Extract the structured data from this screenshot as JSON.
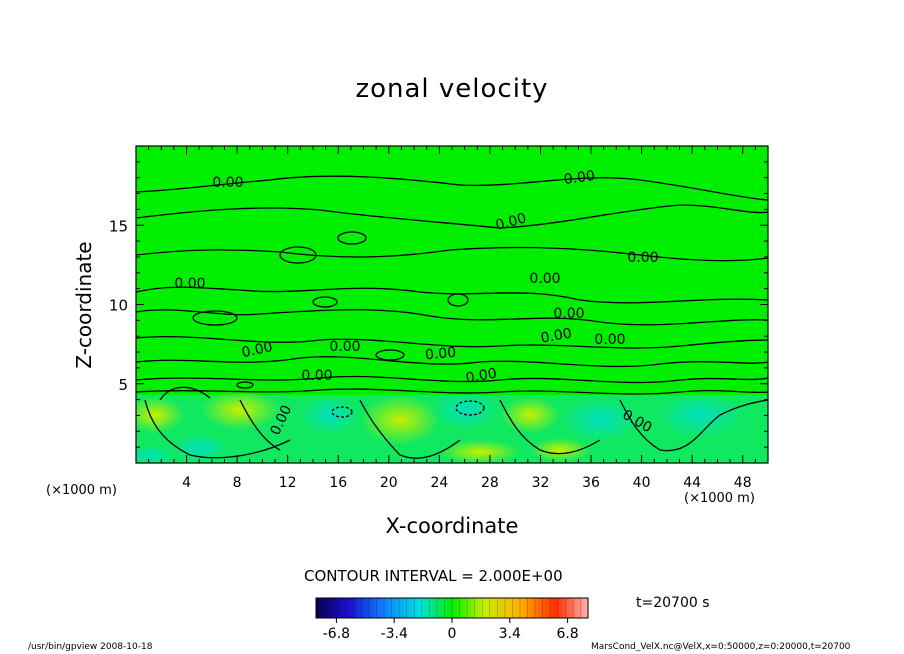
{
  "chart_data": {
    "type": "heatmap",
    "title": "zonal velocity",
    "xlabel": "X-coordinate",
    "ylabel": "Z-coordinate",
    "x_unit_label": "(×1000 m)",
    "xlim": [
      0,
      50
    ],
    "ylim": [
      0,
      20
    ],
    "x_ticks": [
      4,
      8,
      12,
      16,
      20,
      24,
      28,
      32,
      36,
      40,
      44,
      48
    ],
    "y_ticks": [
      5,
      10,
      15
    ],
    "contour_interval_label": "CONTOUR INTERVAL = 2.000E+00",
    "contour_labels": [
      "0.00",
      "0.00",
      "0.00",
      "0.00",
      "0.00",
      "0.00",
      "0.00",
      "0.00",
      "0.00",
      "0.00",
      "0.00",
      "0.00",
      "0.00",
      "0.00",
      "0.00",
      "0.00"
    ],
    "colorbar": {
      "min": -8,
      "max": 8,
      "tick_labels": [
        "-6.8",
        "-3.4",
        "0",
        "3.4",
        "6.8"
      ],
      "tick_values": [
        -6.8,
        -3.4,
        0,
        3.4,
        6.8
      ]
    },
    "time_label": "t=20700 s",
    "grid": false
  },
  "footer": {
    "left": "/usr/bin/gpview   2008-10-18",
    "right": "MarsCond_VelX.nc@VelX,x=0:50000,z=0:20000,t=20700"
  },
  "colors": {
    "background_green": "#00ee00",
    "near_surface_teal": "#00e8a0",
    "warm_patch": "#b8f000"
  }
}
